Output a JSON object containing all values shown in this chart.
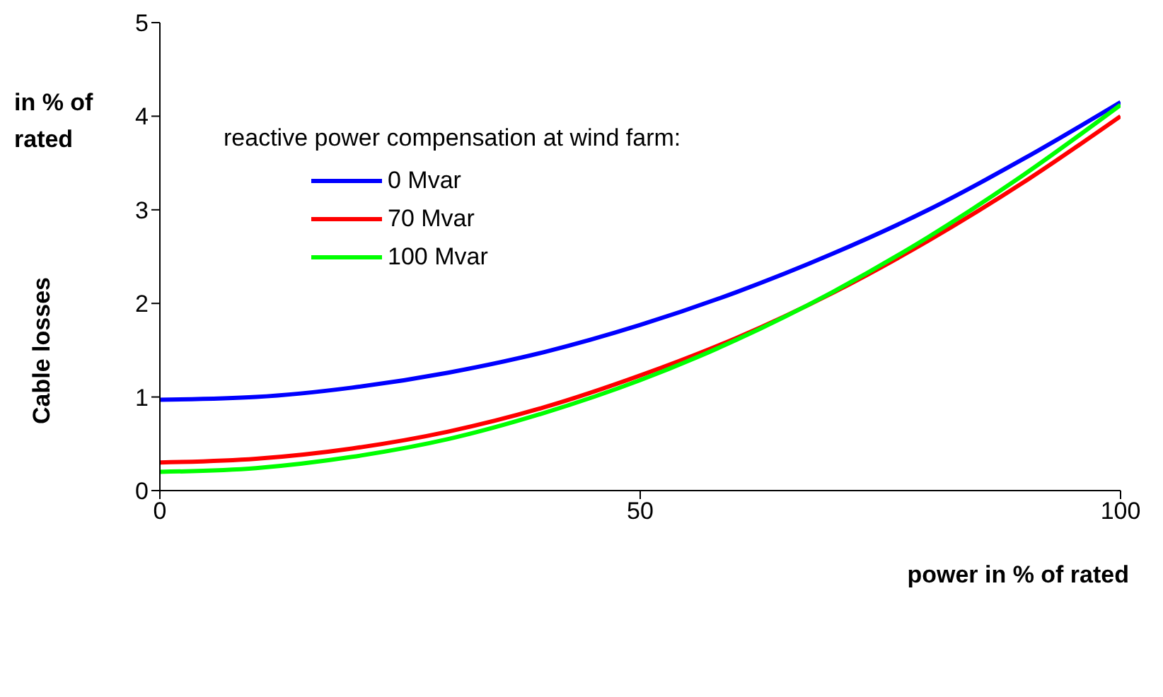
{
  "chart_data": {
    "type": "line",
    "ylabel": "Cable losses",
    "xlabel": "power in % of rated",
    "legend_title": "reactive power compensation at wind farm:",
    "annotations": [
      "in % of rated"
    ],
    "x": [
      0,
      10,
      20,
      30,
      40,
      50,
      60,
      70,
      80,
      90,
      100
    ],
    "series": [
      {
        "name": "0 Mvar",
        "color": "#0000ff",
        "values": [
          0.97,
          1.0,
          1.1,
          1.26,
          1.48,
          1.77,
          2.12,
          2.53,
          3.0,
          3.55,
          4.15
        ]
      },
      {
        "name": "70 Mvar",
        "color": "#ff0000",
        "values": [
          0.3,
          0.34,
          0.45,
          0.63,
          0.89,
          1.23,
          1.63,
          2.11,
          2.67,
          3.3,
          4.0
        ]
      },
      {
        "name": "100 Mvar",
        "color": "#00ff00",
        "values": [
          0.2,
          0.24,
          0.36,
          0.55,
          0.83,
          1.18,
          1.61,
          2.12,
          2.71,
          3.38,
          4.12
        ]
      }
    ],
    "xlim": [
      0,
      100
    ],
    "xticks": [
      0,
      50,
      100
    ],
    "ylim": [
      0,
      5
    ],
    "yticks": [
      0,
      1,
      2,
      3,
      4,
      5
    ],
    "grid": false,
    "legend": "top left",
    "marker": "none",
    "line_style": "solid"
  }
}
